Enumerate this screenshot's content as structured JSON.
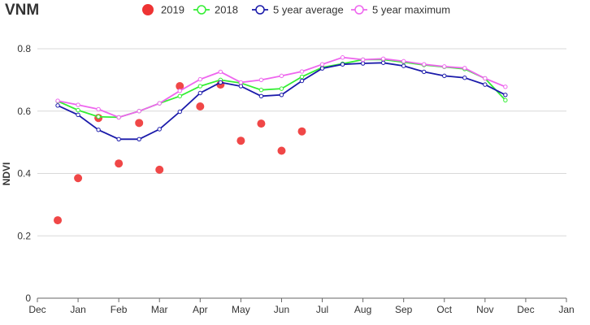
{
  "chart_data": {
    "type": "line",
    "title": "VNM",
    "ylabel": "NDVI",
    "xlabel": "",
    "ylim": [
      0,
      0.8
    ],
    "yticks": [
      "0",
      "0.2",
      "0.4",
      "0.6",
      "0.8"
    ],
    "x_tick_labels": [
      "Dec",
      "Jan",
      "Feb",
      "Mar",
      "Apr",
      "May",
      "Jun",
      "Jul",
      "Aug",
      "Sep",
      "Oct",
      "Nov",
      "Dec",
      "Jan"
    ],
    "grid": "horizontal",
    "legend_position": "top",
    "series": [
      {
        "name": "2019",
        "style": "scatter",
        "color": "#ee3333",
        "x": [
          0.5,
          1.0,
          1.5,
          2.0,
          2.5,
          3.0,
          3.5,
          4.0,
          4.5,
          5.0,
          5.5,
          6.0,
          6.5
        ],
        "values": [
          0.25,
          0.385,
          0.578,
          0.432,
          0.562,
          0.412,
          0.68,
          0.615,
          0.685,
          0.505,
          0.56,
          0.473,
          0.535
        ]
      },
      {
        "name": "2018",
        "style": "line",
        "color": "#33ee33",
        "x": [
          0.5,
          1.0,
          1.5,
          2.0,
          2.5,
          3.0,
          3.5,
          4.0,
          4.5,
          5.0,
          5.5,
          6.0,
          6.5,
          7.0,
          7.5,
          8.0,
          8.5,
          9.0,
          9.5,
          10.0,
          10.5,
          11.0,
          11.5
        ],
        "values": [
          0.632,
          0.603,
          0.582,
          0.58,
          0.6,
          0.625,
          0.648,
          0.68,
          0.7,
          0.69,
          0.668,
          0.672,
          0.71,
          0.74,
          0.752,
          0.765,
          0.765,
          0.757,
          0.748,
          0.742,
          0.735,
          0.705,
          0.635
        ]
      },
      {
        "name": "5 year average",
        "style": "line",
        "color": "#1a1aaa",
        "x": [
          0.5,
          1.0,
          1.5,
          2.0,
          2.5,
          3.0,
          3.5,
          4.0,
          4.5,
          5.0,
          5.5,
          6.0,
          6.5,
          7.0,
          7.5,
          8.0,
          8.5,
          9.0,
          9.5,
          10.0,
          10.5,
          11.0,
          11.5
        ],
        "values": [
          0.618,
          0.588,
          0.54,
          0.51,
          0.51,
          0.542,
          0.598,
          0.658,
          0.692,
          0.68,
          0.648,
          0.652,
          0.697,
          0.737,
          0.75,
          0.753,
          0.755,
          0.745,
          0.726,
          0.713,
          0.707,
          0.685,
          0.652
        ]
      },
      {
        "name": "5 year maximum",
        "style": "line",
        "color": "#ee66ee",
        "x": [
          0.5,
          1.0,
          1.5,
          2.0,
          2.5,
          3.0,
          3.5,
          4.0,
          4.5,
          5.0,
          5.5,
          6.0,
          6.5,
          7.0,
          7.5,
          8.0,
          8.5,
          9.0,
          9.5,
          10.0,
          10.5,
          11.0,
          11.5
        ],
        "values": [
          0.633,
          0.62,
          0.606,
          0.58,
          0.6,
          0.625,
          0.665,
          0.702,
          0.726,
          0.692,
          0.7,
          0.713,
          0.727,
          0.75,
          0.772,
          0.765,
          0.768,
          0.76,
          0.75,
          0.743,
          0.738,
          0.705,
          0.678
        ]
      }
    ]
  }
}
